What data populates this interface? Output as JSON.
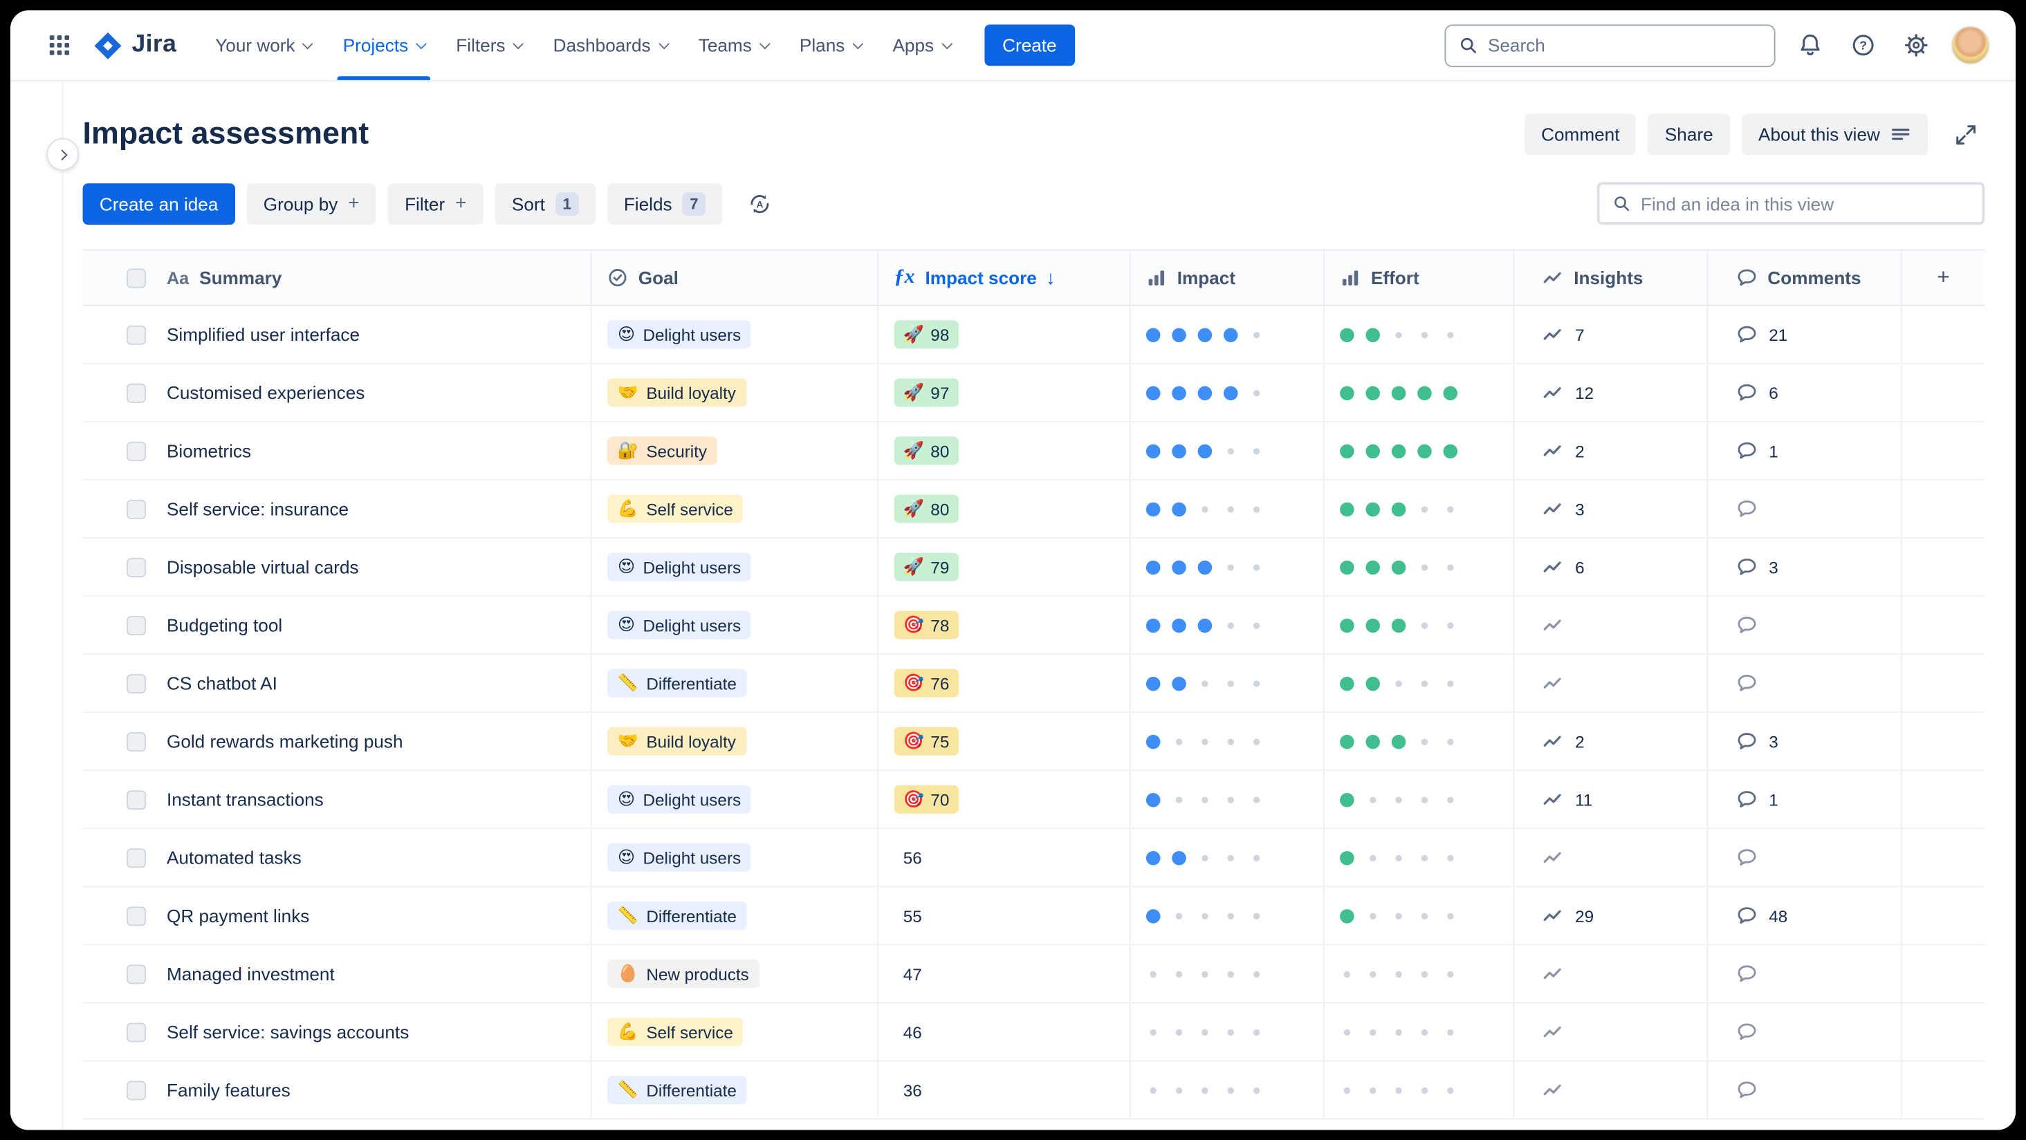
{
  "navbar": {
    "brand": "Jira",
    "items": [
      {
        "label": "Your work"
      },
      {
        "label": "Projects",
        "active": true
      },
      {
        "label": "Filters"
      },
      {
        "label": "Dashboards"
      },
      {
        "label": "Teams"
      },
      {
        "label": "Plans"
      },
      {
        "label": "Apps"
      }
    ],
    "create_label": "Create",
    "search_placeholder": "Search",
    "search_value": ""
  },
  "header": {
    "title": "Impact assessment",
    "buttons": {
      "comment": "Comment",
      "share": "Share",
      "about": "About this view"
    }
  },
  "toolbar": {
    "create_idea": "Create an idea",
    "group_by": "Group by",
    "filter": "Filter",
    "sort": "Sort",
    "sort_count": "1",
    "fields": "Fields",
    "fields_count": "7",
    "find_placeholder": "Find an idea in this view",
    "find_value": ""
  },
  "icons": {
    "app-switcher": "grid-3x3",
    "search": "magnifier",
    "notifications": "bell",
    "help": "question-circle",
    "settings": "gear",
    "profile": "avatar",
    "sidebar-expand": "chevron-right",
    "expand-view": "diagonal-arrows",
    "about-view": "text-lines",
    "auto-sort": "refresh-A",
    "text-field": "Aa",
    "select-field": "circle-check",
    "formula-field": "fx",
    "rating-field": "ascending-bars",
    "insights": "trend-line",
    "comments": "speech-bubble",
    "add-column": "plus",
    "sort-direction": "arrow-down"
  },
  "colors": {
    "accent": "#0C66E4",
    "impact_dot": "#3F8EF7",
    "effort_dot": "#41BE8D",
    "empty_dot": "#CFD4DD",
    "score_green": "#C7F0D2",
    "score_yellow": "#F8E6A0"
  },
  "table": {
    "headers": {
      "summary": "Summary",
      "goal": "Goal",
      "impact_score": "Impact score",
      "impact": "Impact",
      "effort": "Effort",
      "insights": "Insights",
      "comments": "Comments"
    },
    "goal_types": {
      "Delight users": {
        "emoji": "😍",
        "bg": "#E8F0FE"
      },
      "Build loyalty": {
        "emoji": "🤝",
        "bg": "#FBEFC1"
      },
      "Security": {
        "emoji": "🔐",
        "bg": "#FEE8CD"
      },
      "Self service": {
        "emoji": "💪",
        "bg": "#FCF3C9"
      },
      "Differentiate": {
        "emoji": "📏",
        "bg": "#E8F0FE"
      },
      "New products": {
        "emoji": "🥚",
        "bg": "#F2F2F0"
      }
    },
    "score_styles": {
      "green": {
        "emoji": "🚀",
        "bg": "#C7F0D2"
      },
      "yellow": {
        "emoji": "🎯",
        "bg": "#F8E6A0"
      }
    },
    "rows": [
      {
        "summary": "Simplified user interface",
        "goal": "Delight users",
        "score": "98",
        "score_style": "green",
        "impact": 4,
        "effort": 2,
        "insights": "7",
        "comments": "21"
      },
      {
        "summary": "Customised experiences",
        "goal": "Build loyalty",
        "score": "97",
        "score_style": "green",
        "impact": 4,
        "effort": 5,
        "insights": "12",
        "comments": "6"
      },
      {
        "summary": "Biometrics",
        "goal": "Security",
        "score": "80",
        "score_style": "green",
        "impact": 3,
        "effort": 5,
        "insights": "2",
        "comments": "1"
      },
      {
        "summary": "Self service: insurance",
        "goal": "Self service",
        "score": "80",
        "score_style": "green",
        "impact": 2,
        "effort": 3,
        "insights": "3",
        "comments": ""
      },
      {
        "summary": "Disposable virtual cards",
        "goal": "Delight users",
        "score": "79",
        "score_style": "green",
        "impact": 3,
        "effort": 3,
        "insights": "6",
        "comments": "3"
      },
      {
        "summary": "Budgeting tool",
        "goal": "Delight users",
        "score": "78",
        "score_style": "yellow",
        "impact": 3,
        "effort": 3,
        "insights": "",
        "comments": ""
      },
      {
        "summary": "CS chatbot AI",
        "goal": "Differentiate",
        "score": "76",
        "score_style": "yellow",
        "impact": 2,
        "effort": 2,
        "insights": "",
        "comments": ""
      },
      {
        "summary": "Gold rewards marketing push",
        "goal": "Build loyalty",
        "score": "75",
        "score_style": "yellow",
        "impact": 1,
        "effort": 3,
        "insights": "2",
        "comments": "3"
      },
      {
        "summary": "Instant transactions",
        "goal": "Delight users",
        "score": "70",
        "score_style": "yellow",
        "impact": 1,
        "effort": 1,
        "insights": "11",
        "comments": "1"
      },
      {
        "summary": "Automated tasks",
        "goal": "Delight users",
        "score": "56",
        "score_style": "",
        "impact": 2,
        "effort": 1,
        "insights": "",
        "comments": ""
      },
      {
        "summary": "QR payment links",
        "goal": "Differentiate",
        "score": "55",
        "score_style": "",
        "impact": 1,
        "effort": 1,
        "insights": "29",
        "comments": "48"
      },
      {
        "summary": "Managed investment",
        "goal": "New products",
        "score": "47",
        "score_style": "",
        "impact": 0,
        "effort": 0,
        "insights": "",
        "comments": ""
      },
      {
        "summary": "Self service: savings accounts",
        "goal": "Self service",
        "score": "46",
        "score_style": "",
        "impact": 0,
        "effort": 0,
        "insights": "",
        "comments": ""
      },
      {
        "summary": "Family features",
        "goal": "Differentiate",
        "score": "36",
        "score_style": "",
        "impact": 0,
        "effort": 0,
        "insights": "",
        "comments": ""
      }
    ]
  }
}
